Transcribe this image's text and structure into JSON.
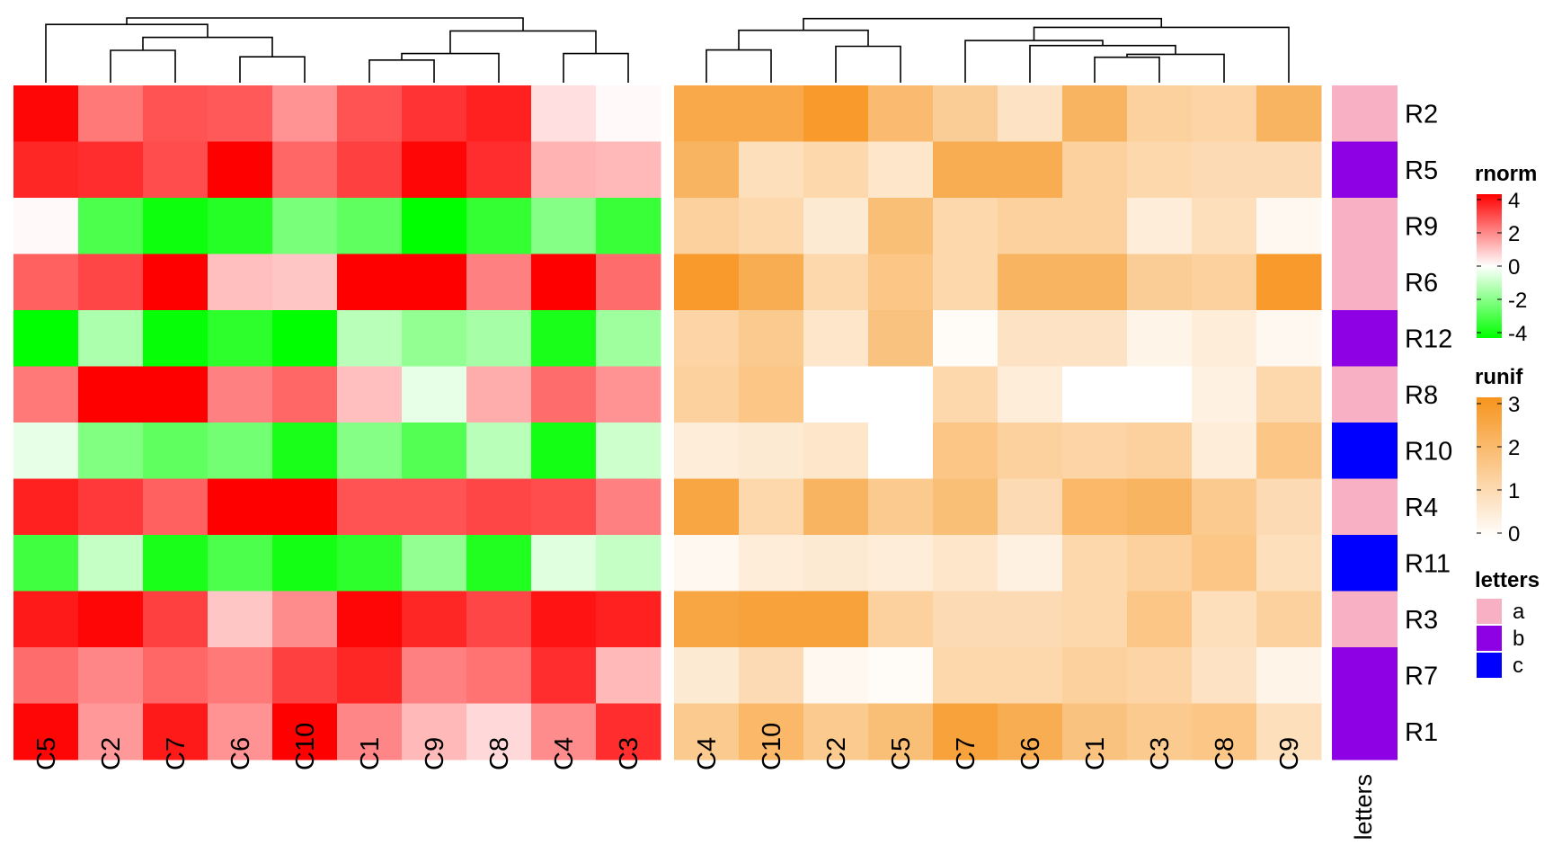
{
  "chart_data": {
    "type": "heatmap",
    "rows": [
      "R2",
      "R5",
      "R9",
      "R6",
      "R12",
      "R8",
      "R10",
      "R4",
      "R11",
      "R3",
      "R7",
      "R1"
    ],
    "heatmaps": [
      {
        "name": "rnorm",
        "columns": [
          "C5",
          "C2",
          "C7",
          "C6",
          "C10",
          "C1",
          "C9",
          "C8",
          "C4",
          "C3"
        ],
        "values": [
          [
            3.9,
            2.1,
            2.7,
            2.6,
            1.7,
            2.7,
            3.2,
            3.5,
            0.5,
            0.1
          ],
          [
            3.4,
            3.3,
            2.8,
            4.0,
            2.4,
            3.0,
            3.9,
            3.3,
            1.2,
            1.1
          ],
          [
            0.1,
            -2.8,
            -3.8,
            -3.4,
            -2.1,
            -2.5,
            -4.1,
            -3.2,
            -1.9,
            -3.1
          ],
          [
            2.5,
            2.9,
            4.0,
            1.0,
            0.9,
            4.0,
            4.0,
            2.0,
            4.0,
            2.3
          ],
          [
            -4.0,
            -1.3,
            -3.9,
            -3.3,
            -4.0,
            -1.1,
            -1.7,
            -1.4,
            -3.6,
            -1.5
          ],
          [
            2.1,
            4.0,
            4.0,
            2.0,
            2.4,
            1.0,
            -0.4,
            1.3,
            2.3,
            1.7
          ],
          [
            -0.4,
            -2.0,
            -2.5,
            -2.2,
            -3.6,
            -1.9,
            -2.7,
            -1.1,
            -3.7,
            -0.8
          ],
          [
            3.5,
            3.1,
            2.5,
            4.0,
            4.0,
            2.7,
            2.7,
            2.9,
            2.8,
            2.0
          ],
          [
            -3.0,
            -0.9,
            -3.6,
            -2.8,
            -3.7,
            -3.3,
            -1.7,
            -3.5,
            -0.5,
            -0.9
          ],
          [
            3.6,
            3.9,
            3.0,
            0.9,
            1.8,
            3.9,
            3.4,
            2.9,
            3.7,
            3.5
          ],
          [
            2.3,
            1.9,
            2.4,
            2.1,
            3.0,
            3.4,
            2.0,
            2.2,
            3.3,
            1.1
          ],
          [
            3.9,
            1.6,
            3.6,
            1.7,
            4.0,
            1.9,
            1.1,
            0.6,
            1.8,
            3.3
          ]
        ]
      },
      {
        "name": "runif",
        "columns": [
          "C4",
          "C10",
          "C2",
          "C5",
          "C7",
          "C6",
          "C1",
          "C3",
          "C8",
          "C9"
        ],
        "values": [
          [
            2.4,
            2.4,
            2.8,
            1.9,
            1.4,
            0.8,
            2.1,
            1.3,
            1.2,
            2.1
          ],
          [
            2.1,
            0.9,
            1.1,
            0.7,
            2.3,
            2.3,
            1.3,
            1.1,
            1.0,
            1.0
          ],
          [
            1.3,
            1.1,
            0.6,
            1.8,
            1.1,
            1.3,
            1.3,
            0.5,
            0.9,
            0.2
          ],
          [
            2.8,
            2.3,
            1.1,
            1.6,
            1.1,
            2.1,
            2.1,
            1.4,
            1.3,
            2.8
          ],
          [
            1.2,
            1.5,
            0.7,
            1.7,
            0.1,
            0.8,
            0.8,
            0.3,
            0.5,
            0.2
          ],
          [
            1.3,
            1.6,
            0.0,
            0.0,
            1.1,
            0.5,
            0.0,
            0.0,
            0.4,
            1.1
          ],
          [
            0.5,
            0.6,
            0.7,
            0.0,
            1.6,
            1.3,
            1.2,
            1.3,
            0.5,
            1.6
          ],
          [
            2.5,
            1.1,
            2.1,
            1.5,
            1.8,
            1.0,
            2.0,
            2.1,
            1.5,
            1.0
          ],
          [
            0.2,
            0.5,
            0.6,
            0.5,
            0.7,
            0.4,
            1.1,
            1.3,
            1.6,
            0.9
          ],
          [
            2.5,
            2.6,
            2.6,
            1.3,
            1.0,
            1.0,
            1.1,
            1.6,
            0.9,
            1.3
          ],
          [
            0.6,
            1.0,
            0.2,
            0.1,
            1.1,
            1.1,
            1.3,
            1.2,
            0.8,
            0.3
          ],
          [
            1.5,
            2.0,
            1.5,
            1.8,
            2.6,
            2.3,
            1.7,
            1.5,
            1.6,
            0.9
          ]
        ]
      }
    ],
    "annotation": {
      "name": "letters",
      "values": [
        "a",
        "b",
        "a",
        "a",
        "b",
        "a",
        "c",
        "a",
        "c",
        "a",
        "b",
        "b"
      ]
    },
    "legends": [
      {
        "title": "rnorm",
        "type": "continuous",
        "ticks": [
          "4",
          "2",
          "0",
          "-2",
          "-4"
        ],
        "range": [
          -4,
          4
        ],
        "colors": [
          "#00ff00",
          "#ffffff",
          "#ff0000"
        ]
      },
      {
        "title": "runif",
        "type": "continuous",
        "ticks": [
          "3",
          "2",
          "1",
          "0"
        ],
        "range": [
          0,
          3
        ],
        "colors": [
          "#ffffff",
          "#f7941d"
        ]
      },
      {
        "title": "letters",
        "type": "discrete",
        "items": [
          "a",
          "b",
          "c"
        ],
        "colors": [
          "#f8b0c4",
          "#8e01e5",
          "#0000ff"
        ]
      }
    ],
    "dendrograms": "column dendrograms shown above each heatmap"
  }
}
